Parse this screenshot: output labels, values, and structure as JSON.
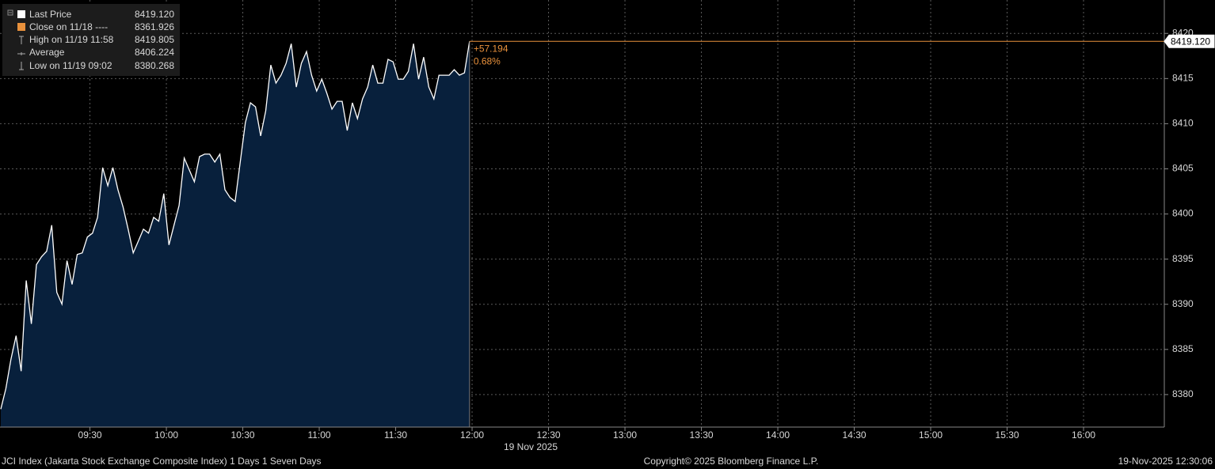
{
  "chart_data": {
    "type": "area",
    "x": [
      535,
      537,
      539,
      541,
      543,
      545,
      547,
      549,
      551,
      553,
      555,
      557,
      559,
      561,
      563,
      565,
      567,
      569,
      571,
      573,
      575,
      577,
      579,
      581,
      583,
      585,
      587,
      589,
      591,
      593,
      595,
      597,
      599,
      601,
      603,
      605,
      607,
      609,
      611,
      613,
      615,
      617,
      619,
      621,
      623,
      625,
      627,
      629,
      631,
      633,
      635,
      637,
      639,
      641,
      643,
      645,
      647,
      649,
      651,
      653,
      655,
      657,
      659,
      661,
      663,
      665,
      667,
      669,
      671,
      673,
      675,
      677,
      679,
      681,
      683,
      685,
      687,
      689,
      691,
      693,
      695,
      697,
      699,
      701,
      703,
      705,
      707,
      709,
      711,
      713,
      715,
      717,
      719
    ],
    "series": [
      {
        "name": "Last Price",
        "color": "#ffffff",
        "fill": "#08203c",
        "values": [
          8378.39,
          8380.66,
          8383.9,
          8386.52,
          8382.59,
          8392.64,
          8387.83,
          8394.39,
          8395.26,
          8395.87,
          8398.76,
          8391.33,
          8390.02,
          8394.83,
          8392.2,
          8395.52,
          8395.7,
          8397.45,
          8397.88,
          8399.63,
          8405.14,
          8403.13,
          8405.14,
          8402.69,
          8400.77,
          8398.32,
          8395.7,
          8397.01,
          8398.32,
          8397.88,
          8399.63,
          8399.2,
          8402.26,
          8396.57,
          8398.76,
          8400.94,
          8406.19,
          8404.88,
          8403.57,
          8406.36,
          8406.63,
          8406.63,
          8405.75,
          8406.63,
          8402.69,
          8401.82,
          8401.38,
          8405.75,
          8410.12,
          8412.31,
          8411.87,
          8408.64,
          8411.43,
          8416.5,
          8414.49,
          8415.37,
          8416.68,
          8418.86,
          8414.06,
          8416.68,
          8417.99,
          8415.37,
          8413.62,
          8414.93,
          8413.36,
          8411.61,
          8412.48,
          8412.48,
          8409.25,
          8412.31,
          8410.56,
          8412.74,
          8414.06,
          8416.5,
          8414.49,
          8414.49,
          8417.12,
          8416.85,
          8414.93,
          8414.93,
          8415.8,
          8418.86,
          8414.93,
          8417.38,
          8414.06,
          8412.74,
          8415.37,
          8415.37,
          8415.37,
          8415.98,
          8415.37,
          8415.63,
          8419.12
        ]
      }
    ],
    "legend": [
      {
        "label": "Last Price",
        "value_label": "8419.120"
      },
      {
        "label": "Close on 11/18 ----",
        "value_label": "8361.926"
      },
      {
        "label": "High on 11/19 11:58",
        "value_label": "8419.805"
      },
      {
        "label": "Average",
        "value_label": "8406.224"
      },
      {
        "label": "Low on 11/19 09:02",
        "value_label": "8380.268"
      }
    ],
    "reference_line": {
      "value": 8419.12,
      "label": "8419.120",
      "color": "#e8913c"
    },
    "change": "+57.194",
    "change_pct": "0.68%",
    "xlim": [
      534.7,
      991.7
    ],
    "xticks": [
      {
        "value": 570,
        "label": "09:30"
      },
      {
        "value": 600,
        "label": "10:00"
      },
      {
        "value": 630,
        "label": "10:30"
      },
      {
        "value": 660,
        "label": "11:00"
      },
      {
        "value": 690,
        "label": "11:30"
      },
      {
        "value": 720,
        "label": "12:00"
      },
      {
        "value": 750,
        "label": "12:30"
      },
      {
        "value": 780,
        "label": "13:00"
      },
      {
        "value": 810,
        "label": "13:30"
      },
      {
        "value": 840,
        "label": "14:00"
      },
      {
        "value": 870,
        "label": "14:30"
      },
      {
        "value": 900,
        "label": "15:00"
      },
      {
        "value": 930,
        "label": "15:30"
      },
      {
        "value": 960,
        "label": "16:00"
      }
    ],
    "x_label": "19 Nov 2025",
    "ylim": [
      8376.4,
      8423.7
    ],
    "yticks": [
      8380,
      8385,
      8390,
      8395,
      8400,
      8405,
      8410,
      8415,
      8420
    ],
    "grid": true,
    "footer_left": "JCI Index (Jakarta Stock Exchange Composite Index) 1 Days 1 Seven Days",
    "footer_center": "Copyright© 2025 Bloomberg Finance L.P.",
    "footer_right": "19-Nov-2025 12:30:06"
  }
}
